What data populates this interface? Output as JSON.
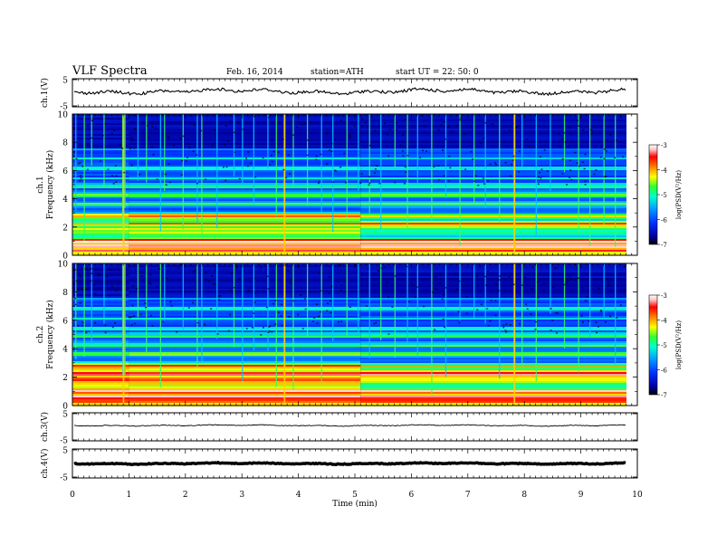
{
  "header": {
    "title": "VLF Spectra",
    "date": "Feb. 16, 2014",
    "station": "station=ATH",
    "start": "start UT =   22: 50: 0"
  },
  "chart_data": {
    "type": "heatmap",
    "xlabel": "Time (min)",
    "xlim": [
      0,
      10
    ],
    "xticks": [
      "0",
      "1",
      "2",
      "3",
      "4",
      "5",
      "6",
      "7",
      "8",
      "9",
      "10"
    ],
    "panels": [
      {
        "ylabel": "ch.1(V)",
        "type": "line",
        "ylim": [
          -5,
          5
        ],
        "yticks": [
          "5",
          "-5"
        ]
      },
      {
        "ylabel": "ch.1\nFrequency (kHz)",
        "type": "heatmap",
        "ylim": [
          0,
          10
        ],
        "yticks": [
          "0",
          "2",
          "4",
          "6",
          "8",
          "10"
        ],
        "colorbar": {
          "label": "log(PSD(V²/Hz)",
          "range": [
            -7,
            -3
          ],
          "ticks": [
            "-3",
            "-4",
            "-5",
            "-6",
            "-7"
          ]
        }
      },
      {
        "ylabel": "ch.2\nFrequency (kHz)",
        "type": "heatmap",
        "ylim": [
          0,
          10
        ],
        "yticks": [
          "0",
          "2",
          "4",
          "6",
          "8",
          "10"
        ],
        "colorbar": {
          "label": "log(PSD(V²/Hz)",
          "range": [
            -7,
            -3
          ],
          "ticks": [
            "-3",
            "-4",
            "-5",
            "-6",
            "-7"
          ]
        }
      },
      {
        "ylabel": "ch.3(V)",
        "type": "line",
        "ylim": [
          -5,
          5
        ],
        "yticks": [
          "5",
          "-5"
        ]
      },
      {
        "ylabel": "ch.4(V)",
        "type": "line",
        "ylim": [
          -5,
          5
        ],
        "yticks": [
          "5",
          "-5"
        ]
      }
    ],
    "colors": {
      "colormap": [
        "#000000",
        "#0000a0",
        "#0030ff",
        "#00a0ff",
        "#00ffd0",
        "#30ff30",
        "#ffff00",
        "#ff8000",
        "#ff0000",
        "#ffc0c0",
        "#ffffff"
      ]
    }
  }
}
